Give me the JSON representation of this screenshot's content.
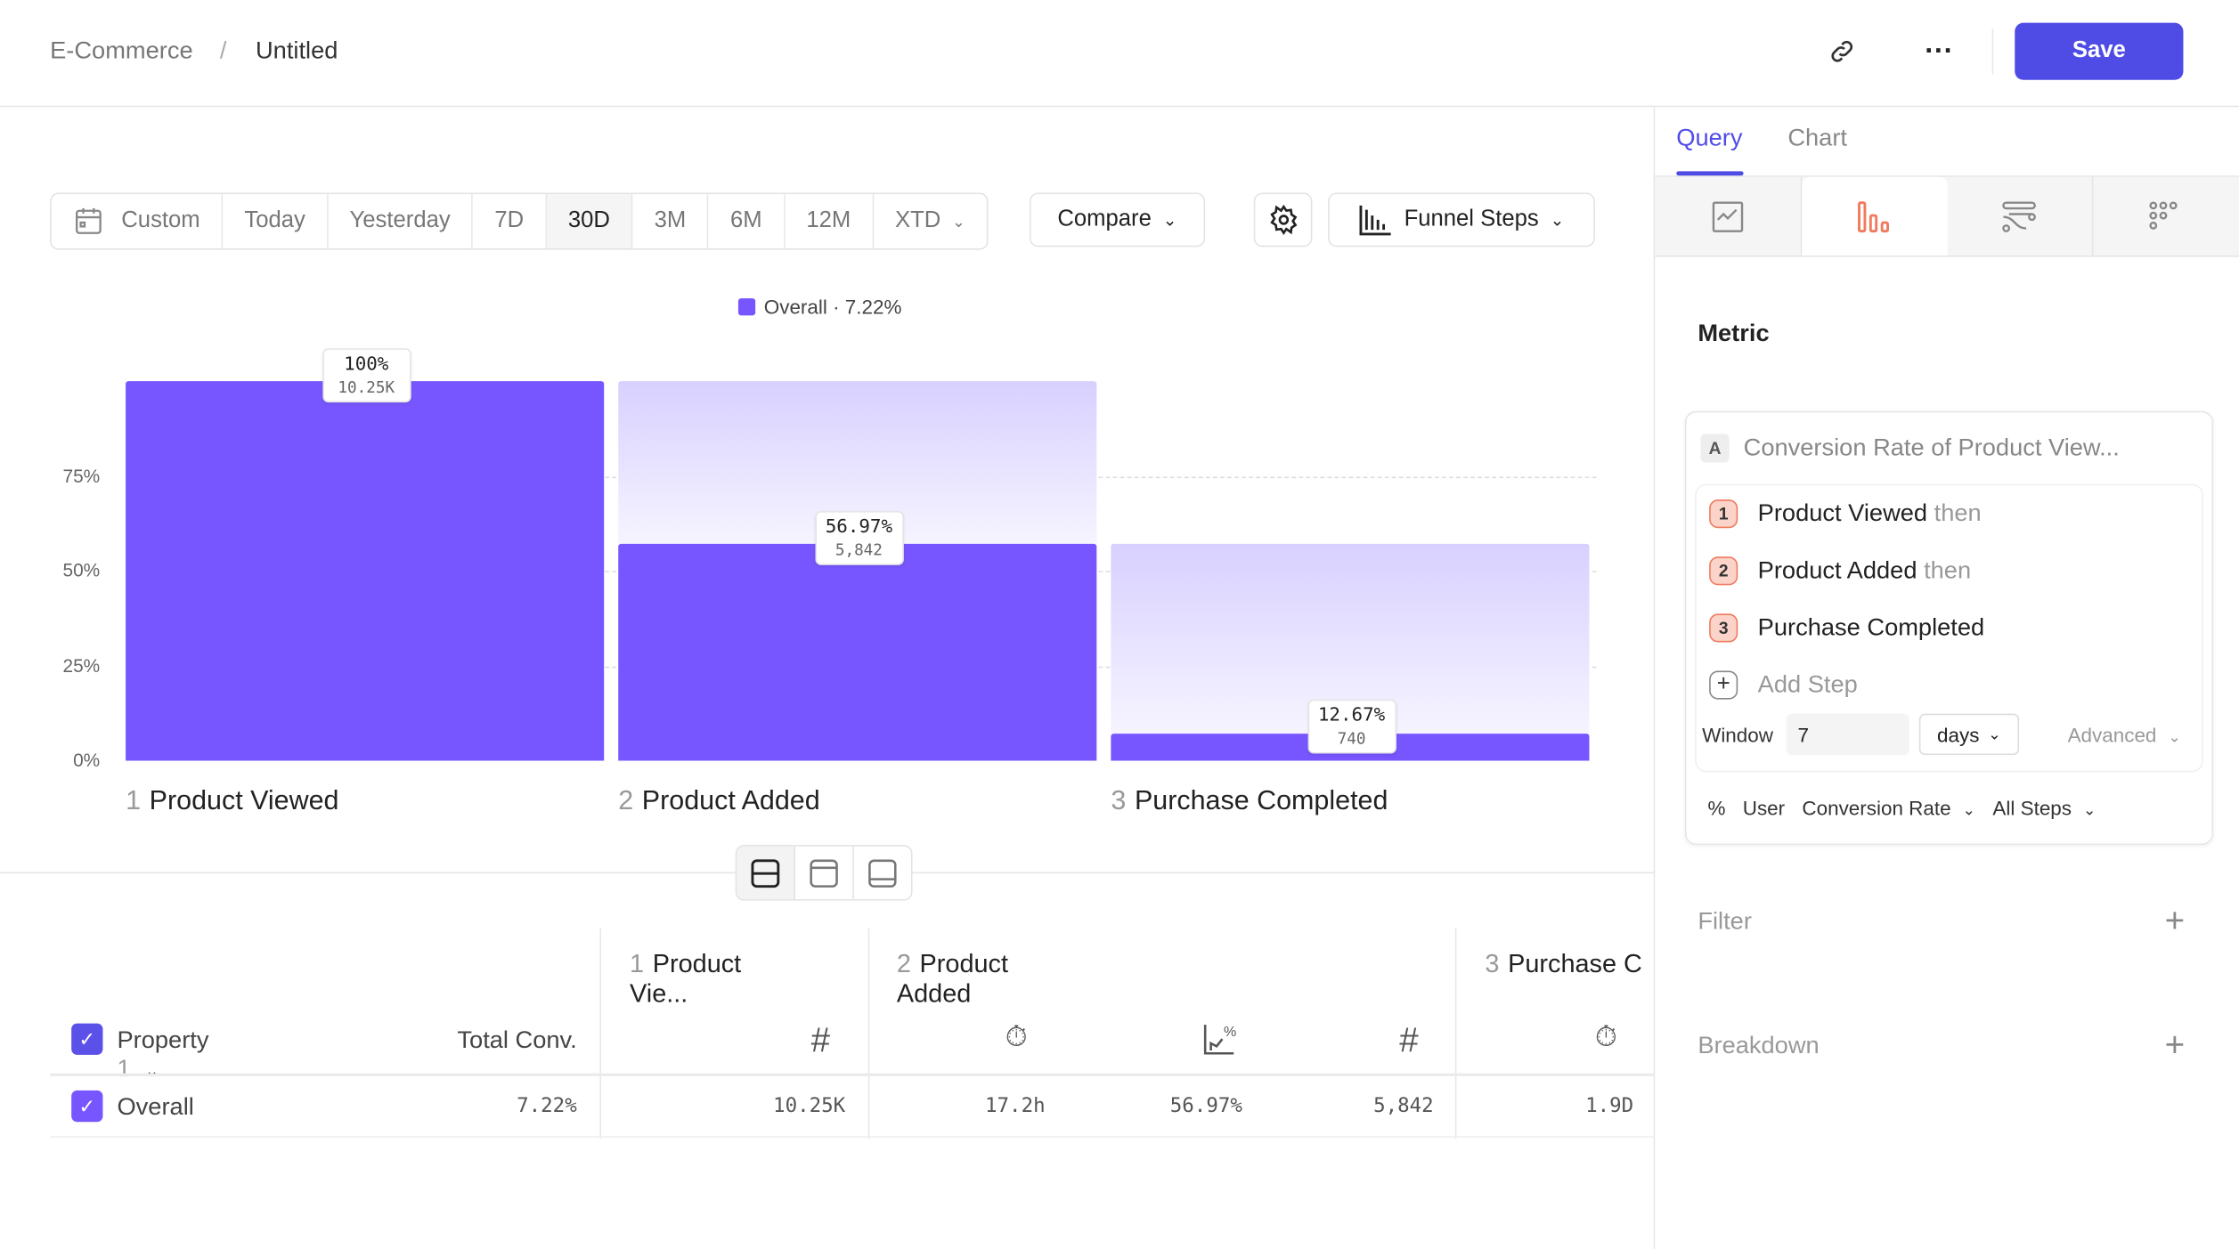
{
  "header": {
    "breadcrumb": [
      "E-Commerce",
      "Untitled"
    ],
    "separator": "/",
    "save_label": "Save",
    "icons": [
      "link-icon",
      "more-icon"
    ]
  },
  "toolbar": {
    "date_ranges": [
      "Custom",
      "Today",
      "Yesterday",
      "7D",
      "30D",
      "3M",
      "6M",
      "12M",
      "XTD"
    ],
    "active_range": "30D",
    "compare_label": "Compare",
    "chart_type_label": "Funnel Steps"
  },
  "chart_data": {
    "type": "bar",
    "legend": "Overall · 7.22%",
    "legend_color": "#7856ff",
    "y_ticks": [
      "0%",
      "25%",
      "50%",
      "75%"
    ],
    "ylim": [
      0,
      100
    ],
    "categories": [
      {
        "num": "1",
        "name": "Product Viewed"
      },
      {
        "num": "2",
        "name": "Product Added"
      },
      {
        "num": "3",
        "name": "Purchase Completed"
      }
    ],
    "overall_pct": [
      100,
      56.97,
      7.22
    ],
    "step_conversion_labels": [
      "100%",
      "56.97%",
      "12.67%"
    ],
    "count_labels": [
      "10.25K",
      "5,842",
      "740"
    ]
  },
  "table": {
    "property_header": "Property",
    "property_num": "1",
    "total_header": "Total Conv.",
    "step_headers": [
      {
        "num": "1",
        "name": "Product Vie..."
      },
      {
        "num": "2",
        "name": "Product Added"
      },
      {
        "num": "3",
        "name": "Purchase C"
      }
    ],
    "row": {
      "label": "Overall",
      "total": "7.22%",
      "cells": [
        "10.25K",
        "17.2h",
        "56.97%",
        "5,842",
        "1.9D"
      ]
    }
  },
  "panel": {
    "tabs": [
      "Query",
      "Chart"
    ],
    "active_tab": "Query",
    "metric_title": "Metric",
    "metric_letter": "A",
    "metric_name": "Conversion Rate of Product View...",
    "steps": [
      {
        "num": "1",
        "name": "Product Viewed",
        "suffix": "then"
      },
      {
        "num": "2",
        "name": "Product Added",
        "suffix": "then"
      },
      {
        "num": "3",
        "name": "Purchase Completed",
        "suffix": ""
      }
    ],
    "add_step": "Add Step",
    "window_label": "Window",
    "window_value": "7",
    "window_unit": "days",
    "advanced": "Advanced",
    "pct_symbol": "%",
    "user_label": "User",
    "rate_label": "Conversion Rate",
    "steps_label": "All Steps",
    "filter": "Filter",
    "breakdown": "Breakdown"
  },
  "colors": {
    "accent": "#4f4ce6",
    "bar": "#7856ff",
    "funnel_icon": "#f07a5e"
  }
}
